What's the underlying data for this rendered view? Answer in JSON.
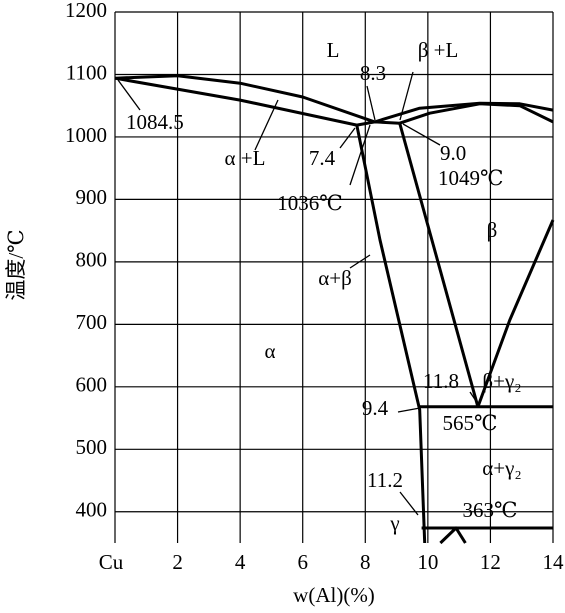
{
  "chart_data": {
    "type": "phase_diagram",
    "ylabel": "温度/℃",
    "xlabel": "w(Al)(%)",
    "xlim": [
      0,
      14
    ],
    "ylim": [
      350,
      1200
    ],
    "xticks": [
      {
        "value": 0,
        "label": "Cu"
      },
      2,
      4,
      6,
      8,
      10,
      12,
      14
    ],
    "yticks": [
      400,
      500,
      600,
      700,
      800,
      900,
      1000,
      1100,
      1200
    ],
    "grid": true,
    "color": "#000000",
    "curves": [
      {
        "x": [
          0,
          2,
          4,
          6,
          8.3
        ],
        "y": [
          1094,
          1098,
          1086,
          1064,
          1024
        ]
      },
      {
        "x": [
          0,
          4,
          7.73
        ],
        "y": [
          1094,
          1059,
          1019
        ]
      },
      {
        "x": [
          7.73,
          8.3,
          9.1
        ],
        "y": [
          1019,
          1024,
          1022
        ]
      },
      {
        "x": [
          8.3,
          9.74,
          11.66,
          12.94,
          14
        ],
        "y": [
          1024,
          1046,
          1054,
          1053,
          1043
        ]
      },
      {
        "x": [
          9.1,
          10.06,
          11.66,
          12.94,
          14
        ],
        "y": [
          1022,
          1038,
          1053,
          1050,
          1024
        ]
      },
      {
        "x": [
          7.73,
          8.47,
          9.74,
          9.9
        ],
        "y": [
          1019,
          835,
          563,
          350
        ]
      },
      {
        "x": [
          9.1,
          11.6
        ],
        "y": [
          1022,
          568
        ]
      },
      {
        "x": [
          11.6,
          12.62,
          14
        ],
        "y": [
          568,
          707,
          867
        ]
      },
      {
        "x": [
          9.74,
          14
        ],
        "y": [
          568,
          568
        ]
      },
      {
        "x": [
          9.8,
          14
        ],
        "y": [
          374,
          374
        ]
      },
      {
        "x": [
          10.4,
          10.9,
          11.2
        ],
        "y": [
          350,
          374,
          350
        ]
      }
    ],
    "annotations": [
      "L",
      "β +L",
      "8.3",
      "1084.5",
      "α +L",
      "7.4",
      "9.0",
      "1049℃",
      "1036℃",
      "β",
      "α+β",
      "α",
      "11.8",
      "β+γ₂",
      "9.4",
      "565℃",
      "α+γ₂",
      "11.2",
      "363℃",
      "γ"
    ]
  }
}
